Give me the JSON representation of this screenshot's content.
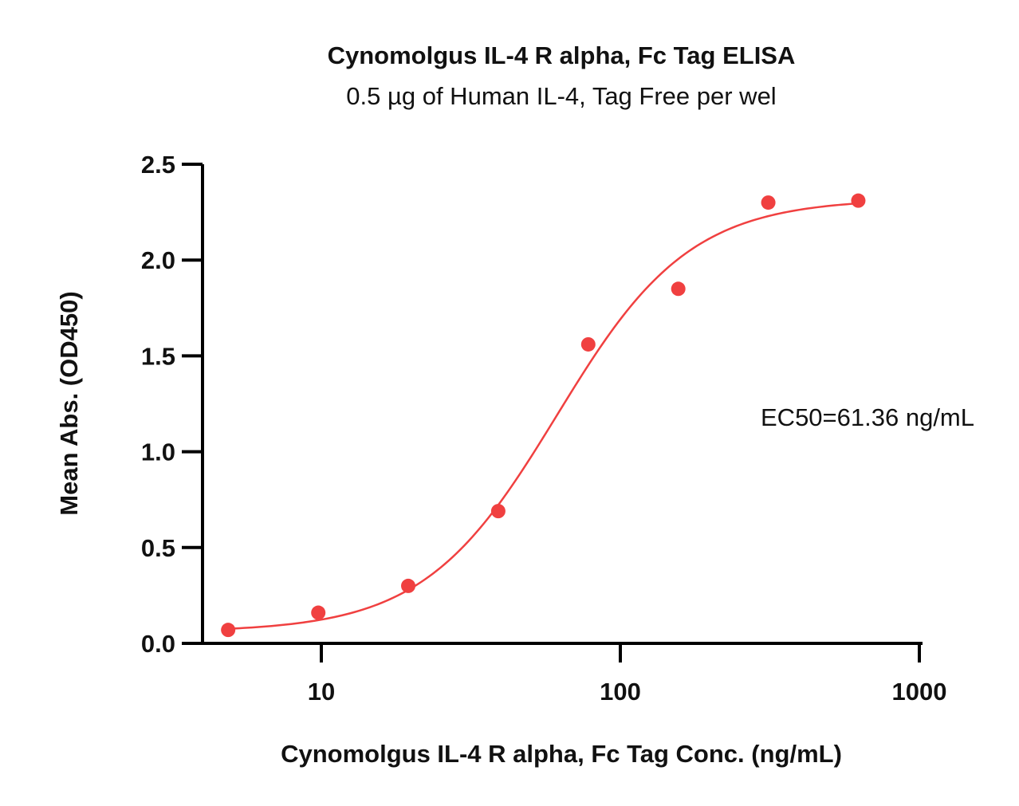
{
  "chart_data": {
    "type": "scatter",
    "title": "Cynomolgus IL-4 R alpha, Fc Tag ELISA",
    "subtitle": "0.5 µg of Human IL-4, Tag Free per wel",
    "xlabel": "Cynomolgus IL-4 R alpha, Fc Tag Conc. (ng/mL)",
    "ylabel": "Mean Abs. (OD450)",
    "x_scale": "log",
    "xlim": [
      4.5,
      1000
    ],
    "ylim": [
      0,
      2.5
    ],
    "x_ticks": [
      10,
      100,
      1000
    ],
    "x_tick_labels": [
      "10",
      "100",
      "1000"
    ],
    "y_ticks": [
      0,
      0.5,
      1,
      1.5,
      2,
      2.5
    ],
    "y_tick_labels": [
      "0.0",
      "0.5",
      "1.0",
      "1.5",
      "2.0",
      "2.5"
    ],
    "grid": false,
    "series": [
      {
        "color": "#f04040",
        "x": [
          4.88,
          9.77,
          19.53,
          39.06,
          78.13,
          156.25,
          312.5,
          625
        ],
        "y": [
          0.07,
          0.16,
          0.3,
          0.69,
          1.56,
          1.85,
          2.3,
          2.31
        ],
        "fit": {
          "model": "4PL",
          "bottom": 0.06,
          "top": 2.32,
          "ec50": 61.36,
          "hill": 1.95,
          "x_range": [
            4.88,
            625
          ]
        }
      }
    ],
    "annotations": [
      {
        "text": "EC50=61.36 ng/mL"
      }
    ]
  }
}
